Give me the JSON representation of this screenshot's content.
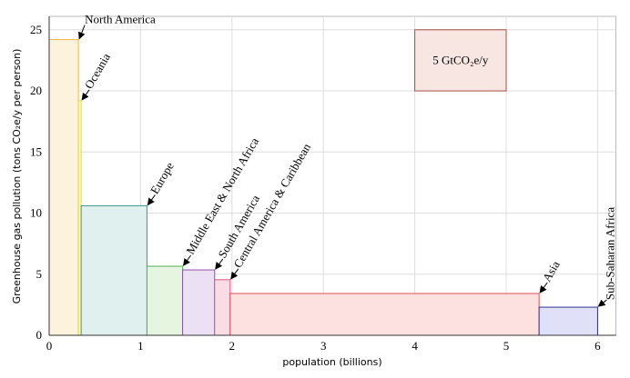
{
  "chart_data": {
    "type": "variable-width-bar",
    "xlabel": "population (billions)",
    "ylabel": "Greenhouse gas pollution (tons CO₂e/y per person)",
    "categories": [
      "North America",
      "Oceania",
      "Europe",
      "Middle East & North Africa",
      "South America",
      "Central America & Caribbean",
      "Asia",
      "Sub-Saharan Africa"
    ],
    "widths": [
      0.32,
      0.03,
      0.72,
      0.39,
      0.35,
      0.17,
      3.38,
      0.64
    ],
    "values": [
      24.2,
      19.2,
      10.6,
      5.65,
      5.35,
      4.55,
      3.42,
      2.3
    ],
    "fills": [
      "#fdf2dc",
      "#fafad0",
      "#e0f0ee",
      "#e6f5e0",
      "#ece0f3",
      "#fadce6",
      "#fde0e0",
      "#e0e0f8"
    ],
    "strokes": [
      "#f0b840",
      "#e0d840",
      "#3a9a8a",
      "#50b050",
      "#9050b0",
      "#e05080",
      "#e05050",
      "#303090"
    ],
    "xlim": [
      0,
      6.2
    ],
    "ylim": [
      0,
      26.1
    ],
    "xticks": [
      0,
      1,
      2,
      3,
      4,
      5,
      6
    ],
    "yticks": [
      0,
      5,
      10,
      15,
      20,
      25
    ],
    "grid": true,
    "scale_box": {
      "label": "5 GtCO₂e/y",
      "x": [
        4,
        5
      ],
      "y": [
        20,
        25
      ],
      "fill": "#f7e6e2",
      "stroke": "#a05040"
    }
  }
}
